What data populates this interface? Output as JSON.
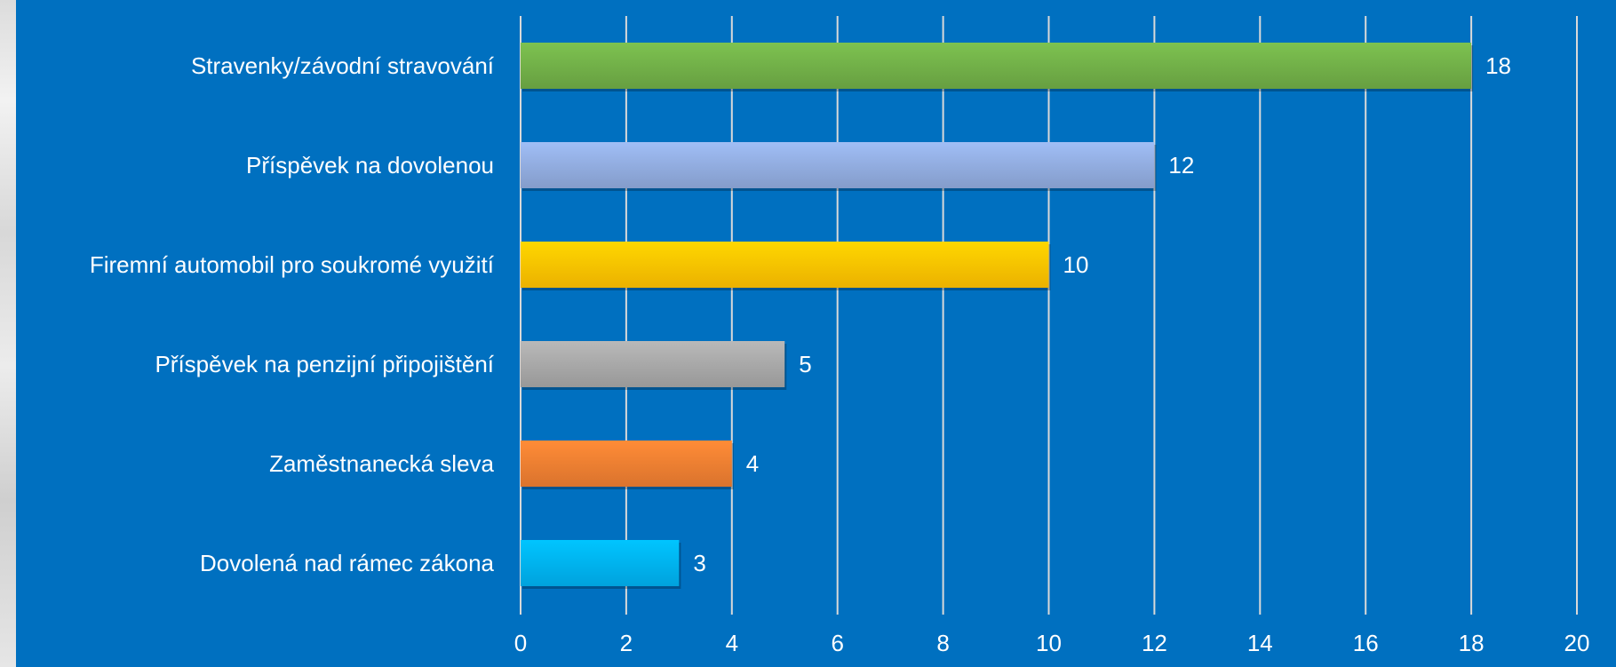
{
  "chart_data": {
    "type": "bar",
    "orientation": "horizontal",
    "categories": [
      "Stravenky/závodní stravování",
      "Příspěvek na dovolenou",
      "Firemní automobil pro soukromé využití",
      "Příspěvek na penzijní připojištění",
      "Zaměstnanecká sleva",
      "Dovolená nad rámec zákona"
    ],
    "values": [
      18,
      12,
      10,
      5,
      4,
      3
    ],
    "bar_colors": [
      "#70ad47",
      "#8faadc",
      "#ffc000",
      "#a5a5a5",
      "#ed7d31",
      "#00b0f0"
    ],
    "xlim": [
      0,
      20
    ],
    "x_ticks": [
      "0",
      "2",
      "4",
      "6",
      "8",
      "10",
      "12",
      "14",
      "16",
      "18",
      "20"
    ],
    "grid": true,
    "data_labels": true,
    "background_color": "#0070c0",
    "text_color": "#ffffff",
    "gridline_color": "#d9d9d9"
  }
}
